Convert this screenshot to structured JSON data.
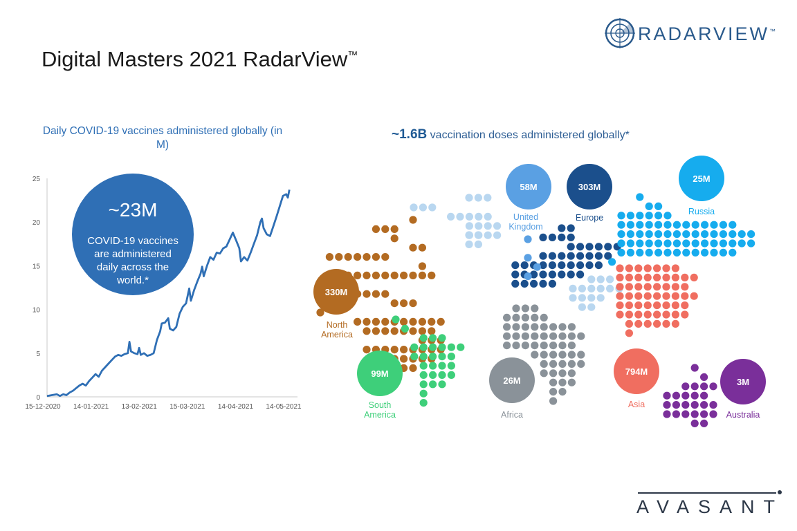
{
  "page": {
    "title": "Digital Masters 2021 RadarView",
    "title_mark": "™",
    "logo": {
      "text": "RADARVIEW",
      "mark": "™",
      "icon": "radar-icon",
      "color": "#2a5a8c"
    },
    "footer_logo": {
      "text": "AVASANT",
      "color": "#2d3848"
    }
  },
  "chart_data": [
    {
      "type": "line",
      "title": "Daily COVID-19 vaccines administered globally (in M)",
      "xlabel": "",
      "ylabel": "",
      "x_ticks": [
        "15-12-2020",
        "14-01-2021",
        "13-02-2021",
        "15-03-2021",
        "14-04-2021",
        "14-05-2021"
      ],
      "y_ticks": [
        "0",
        "5",
        "10",
        "15",
        "20",
        "25"
      ],
      "ylim": [
        0,
        25
      ],
      "xlim_days": [
        0,
        155
      ],
      "grid": false,
      "color": "#2f6fb5",
      "series": [
        {
          "values": [
            [
              0,
              0.1
            ],
            [
              3,
              0.2
            ],
            [
              6,
              0.3
            ],
            [
              8,
              0.1
            ],
            [
              10,
              0.3
            ],
            [
              12,
              0.2
            ],
            [
              14,
              0.5
            ],
            [
              16,
              0.7
            ],
            [
              18,
              1.0
            ],
            [
              20,
              1.3
            ],
            [
              22,
              1.5
            ],
            [
              24,
              1.3
            ],
            [
              26,
              1.8
            ],
            [
              28,
              2.2
            ],
            [
              30,
              2.6
            ],
            [
              32,
              2.3
            ],
            [
              34,
              3.0
            ],
            [
              36,
              3.4
            ],
            [
              38,
              3.8
            ],
            [
              40,
              4.2
            ],
            [
              42,
              4.6
            ],
            [
              44,
              4.8
            ],
            [
              46,
              4.7
            ],
            [
              48,
              4.9
            ],
            [
              50,
              5.0
            ],
            [
              51,
              6.3
            ],
            [
              52,
              5.2
            ],
            [
              54,
              5.0
            ],
            [
              56,
              4.9
            ],
            [
              57,
              5.6
            ],
            [
              58,
              4.8
            ],
            [
              60,
              5.0
            ],
            [
              62,
              4.7
            ],
            [
              64,
              4.8
            ],
            [
              66,
              5.0
            ],
            [
              68,
              6.5
            ],
            [
              70,
              7.5
            ],
            [
              71,
              8.4
            ],
            [
              73,
              8.5
            ],
            [
              75,
              9.0
            ],
            [
              76,
              7.8
            ],
            [
              78,
              7.6
            ],
            [
              80,
              8.0
            ],
            [
              82,
              9.5
            ],
            [
              84,
              10.3
            ],
            [
              86,
              10.7
            ],
            [
              88,
              12.4
            ],
            [
              89,
              11.0
            ],
            [
              91,
              12.2
            ],
            [
              93,
              13.2
            ],
            [
              95,
              14.1
            ],
            [
              96,
              14.9
            ],
            [
              97,
              13.8
            ],
            [
              99,
              15.0
            ],
            [
              101,
              16.0
            ],
            [
              103,
              15.7
            ],
            [
              105,
              16.5
            ],
            [
              107,
              16.4
            ],
            [
              109,
              17.0
            ],
            [
              111,
              17.2
            ],
            [
              113,
              18.0
            ],
            [
              115,
              18.8
            ],
            [
              117,
              17.9
            ],
            [
              119,
              17.0
            ],
            [
              120,
              15.5
            ],
            [
              122,
              16.0
            ],
            [
              124,
              15.6
            ],
            [
              126,
              16.5
            ],
            [
              128,
              17.5
            ],
            [
              130,
              18.5
            ],
            [
              132,
              20.0
            ],
            [
              133,
              20.4
            ],
            [
              134,
              19.3
            ],
            [
              136,
              18.6
            ],
            [
              138,
              18.4
            ],
            [
              140,
              19.5
            ],
            [
              142,
              20.6
            ],
            [
              144,
              21.8
            ],
            [
              146,
              23.0
            ],
            [
              148,
              23.2
            ],
            [
              149,
              22.8
            ],
            [
              150,
              23.7
            ]
          ]
        }
      ],
      "annotation": {
        "value": "~23M",
        "text": "COVID-19 vaccines are administered daily across the world.*",
        "color": "#2f6fb5"
      }
    },
    {
      "type": "other",
      "title": "~1.6B vaccination doses administered globally*",
      "title_emphasis": "~1.6B",
      "title_rest": " vaccination doses administered globally*",
      "regions": [
        {
          "name": "United Kingdom",
          "label_lines": [
            "United",
            "Kingdom"
          ],
          "value": "58M",
          "color": "#5aa0e3"
        },
        {
          "name": "Europe",
          "label_lines": [
            "Europe"
          ],
          "value": "303M",
          "color": "#1b4f8c"
        },
        {
          "name": "Russia",
          "label_lines": [
            "Russia"
          ],
          "value": "25M",
          "color": "#16acee"
        },
        {
          "name": "North America",
          "label_lines": [
            "North",
            "America"
          ],
          "value": "330M",
          "color": "#b36b22"
        },
        {
          "name": "South America",
          "label_lines": [
            "South",
            "America"
          ],
          "value": "99M",
          "color": "#3ecf7a"
        },
        {
          "name": "Africa",
          "label_lines": [
            "Africa"
          ],
          "value": "26M",
          "color": "#8a9299"
        },
        {
          "name": "Asia",
          "label_lines": [
            "Asia"
          ],
          "value": "794M",
          "color": "#f06e60"
        },
        {
          "name": "Australia",
          "label_lines": [
            "Australia"
          ],
          "value": "3M",
          "color": "#7a2f9a"
        }
      ],
      "secondary_dot_color": "#b9d7f0"
    }
  ]
}
